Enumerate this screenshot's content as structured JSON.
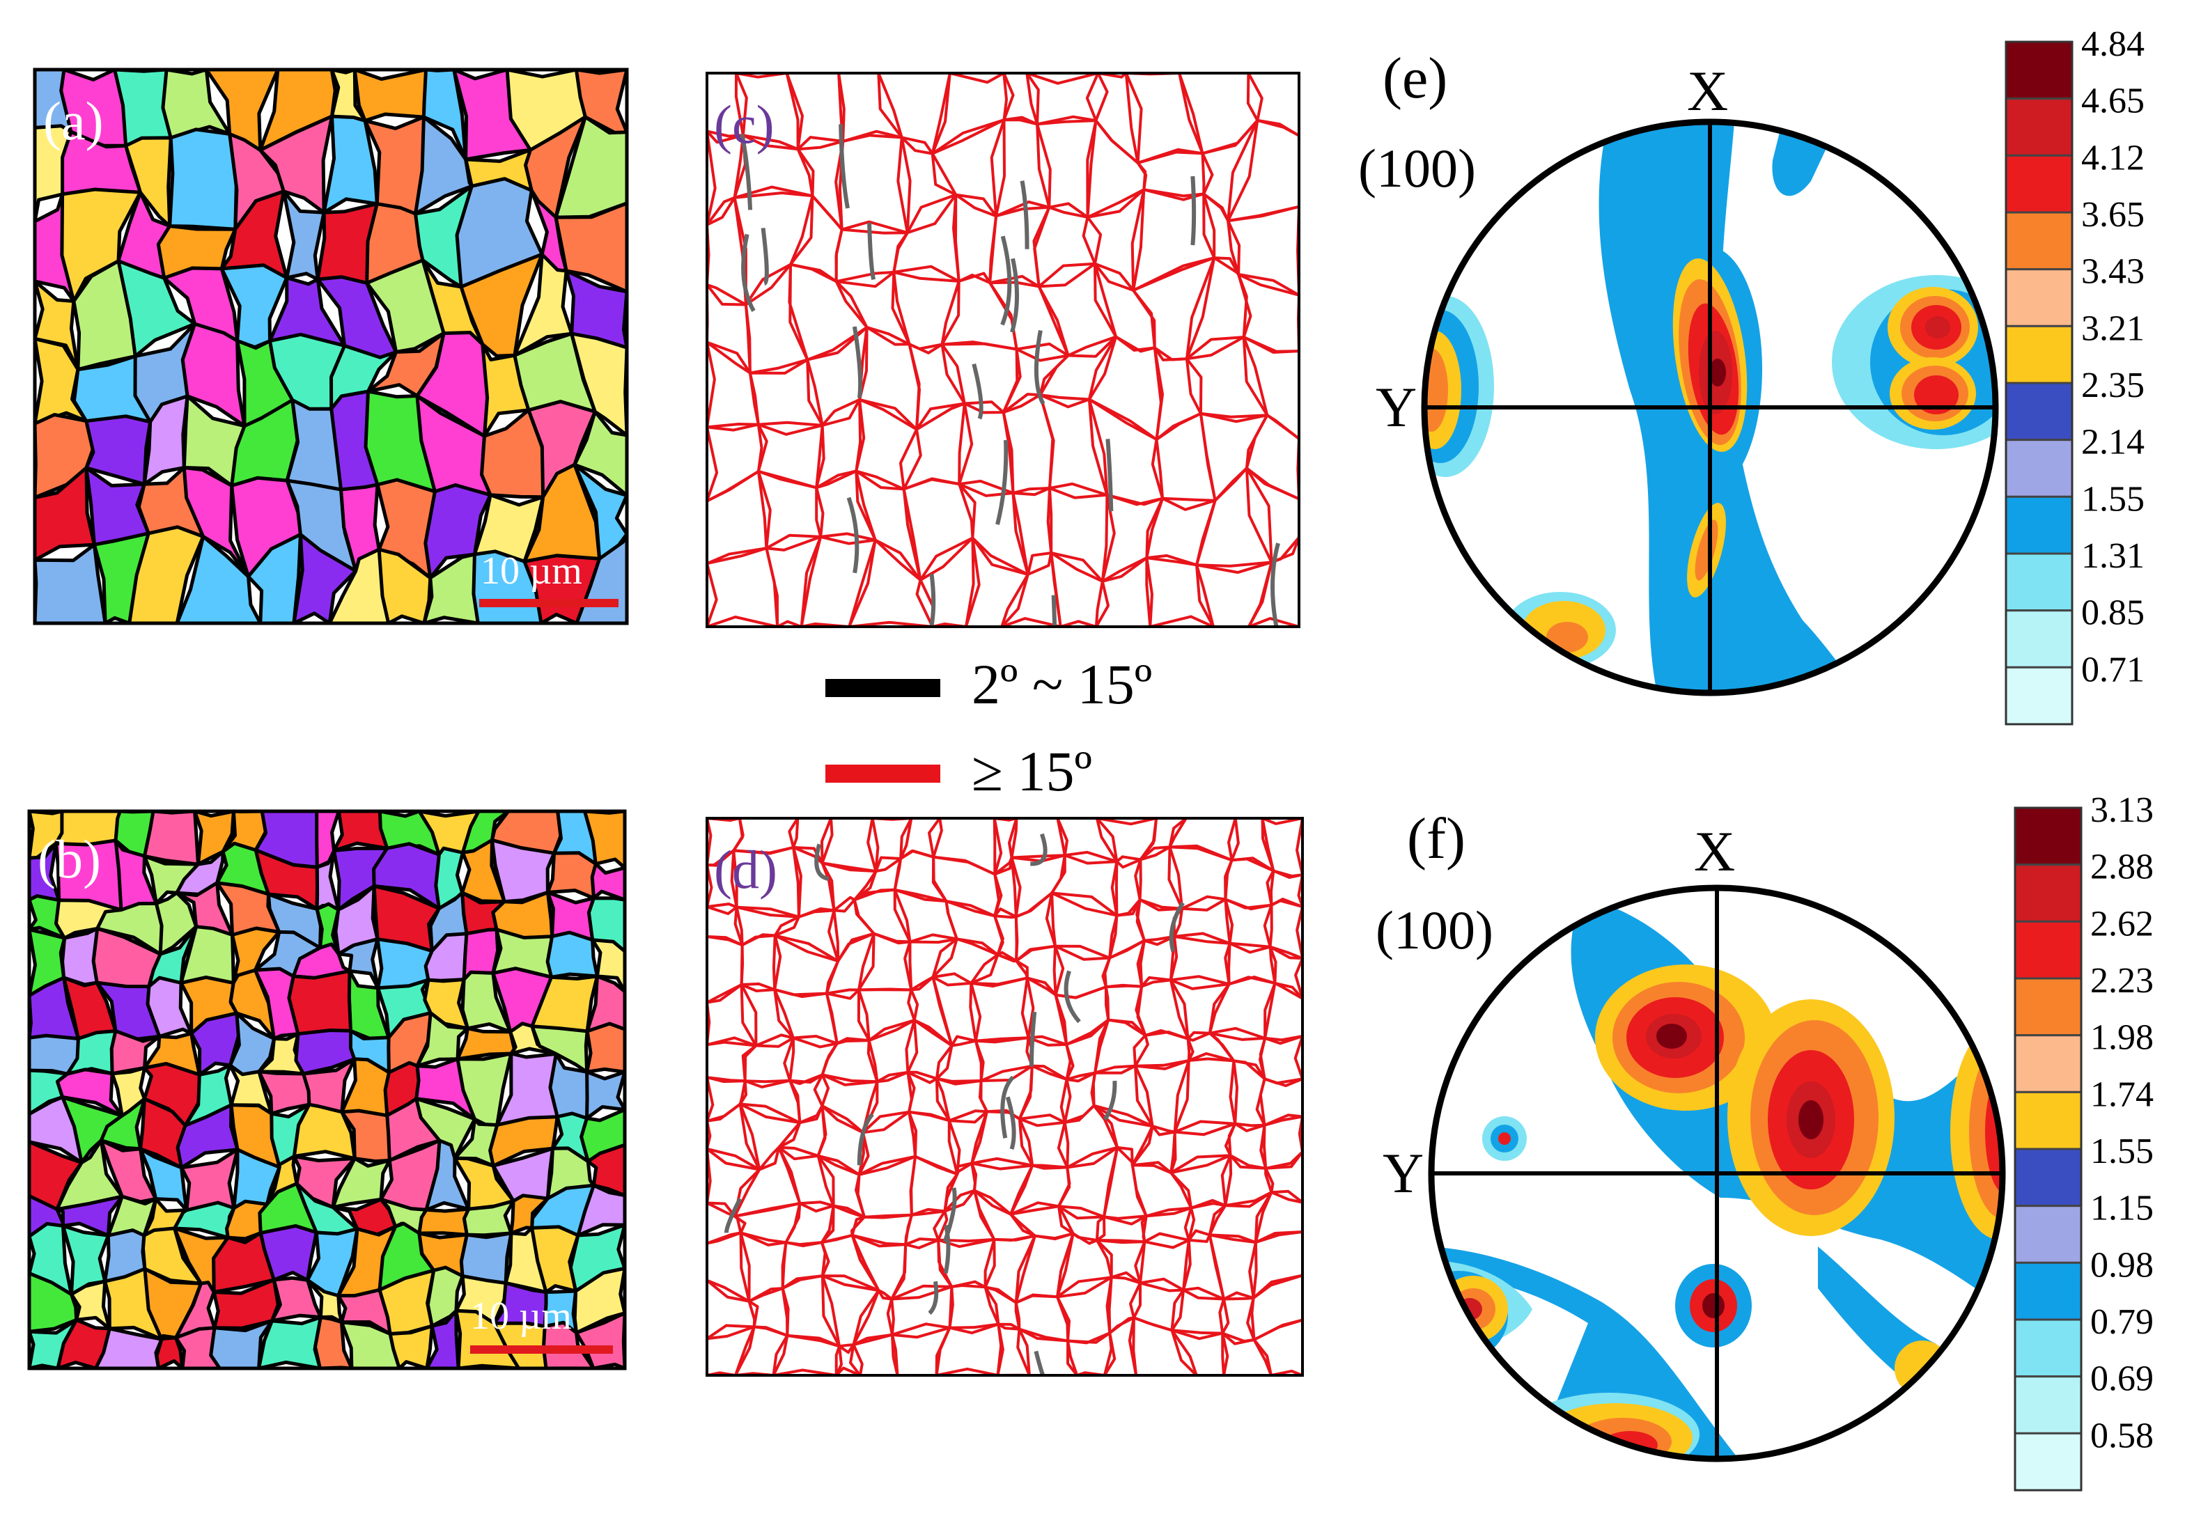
{
  "panels": {
    "a": {
      "label": "(a)",
      "scale_bar": "10 µm",
      "label_color": "#ffffff",
      "scale_color": "#ffffff",
      "bar_color": "#e0191f"
    },
    "b": {
      "label": "(b)",
      "scale_bar": "10 µm",
      "label_color": "#ffffff",
      "scale_color": "#ffffff",
      "bar_color": "#e0191f"
    },
    "c": {
      "label": "(c)",
      "label_color": "#6a3a9a"
    },
    "d": {
      "label": "(d)",
      "label_color": "#6a3a9a"
    },
    "e": {
      "label": "(e)",
      "plane": "(100)",
      "x_axis": "X",
      "y_axis": "Y",
      "colorbar": [
        "4.84",
        "4.65",
        "4.12",
        "3.65",
        "3.43",
        "3.21",
        "2.35",
        "2.14",
        "1.55",
        "1.31",
        "0.85",
        "0.71"
      ]
    },
    "f": {
      "label": "(f)",
      "plane": "(100)",
      "x_axis": "X",
      "y_axis": "Y",
      "colorbar": [
        "3.13",
        "2.88",
        "2.62",
        "2.23",
        "1.98",
        "1.74",
        "1.55",
        "1.15",
        "0.98",
        "0.79",
        "0.69",
        "0.58"
      ]
    }
  },
  "legend": {
    "items": [
      {
        "label": "2º ~ 15º",
        "color": "#000000"
      },
      {
        "label": "≥ 15º",
        "color": "#e8141b"
      }
    ]
  },
  "colors": {
    "grain_palette": [
      "#ff3fd2",
      "#44e83a",
      "#ffd43a",
      "#ffa21e",
      "#7fb3ef",
      "#ff5fa2",
      "#d695ff",
      "#8a2cf0",
      "#ff7a4a",
      "#4cf0c0",
      "#e8142a",
      "#ffef7a",
      "#b9f07a",
      "#58c8ff"
    ],
    "boundary_high": "#e8141b",
    "boundary_low": "#666666",
    "colorbar_scale": [
      "#7a0010",
      "#cf1b22",
      "#ea1c1e",
      "#f8822c",
      "#fbb98c",
      "#fcc81e",
      "#3a4ec2",
      "#9fa6e6",
      "#10a0e8",
      "#7fe3f3",
      "#b5f3f7",
      "#d7fbfb"
    ]
  }
}
